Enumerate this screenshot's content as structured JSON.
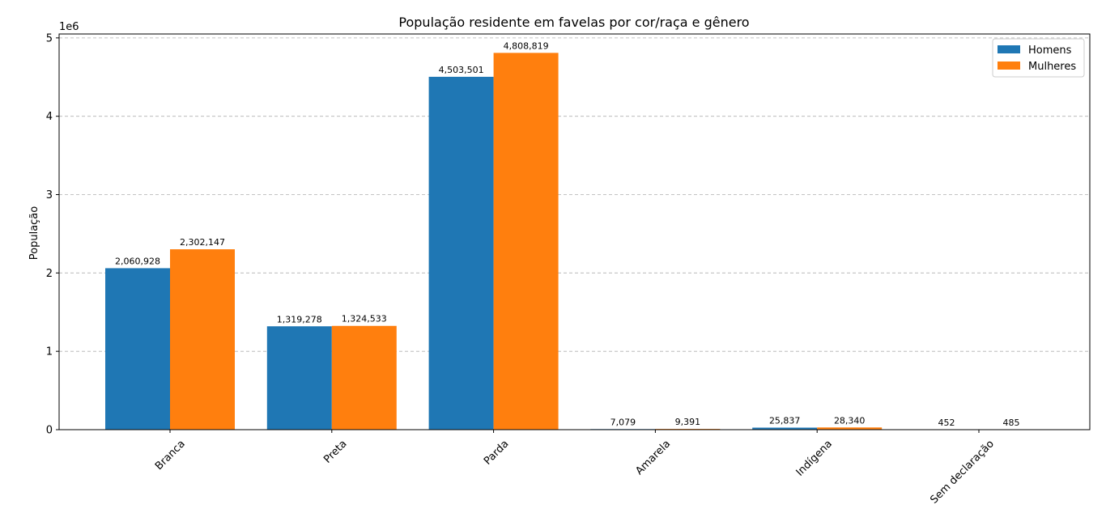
{
  "chart_data": {
    "type": "bar",
    "title": "População residente em favelas por cor/raça e gênero",
    "xlabel": "",
    "ylabel": "População",
    "y_scale_label": "1e6",
    "categories": [
      "Branca",
      "Preta",
      "Parda",
      "Amarela",
      "Indígena",
      "Sem declaração"
    ],
    "series": [
      {
        "name": "Homens",
        "color": "#1f77b4",
        "values": [
          2060928,
          1319278,
          4503501,
          7079,
          25837,
          452
        ],
        "labels": [
          "2,060,928",
          "1,319,278",
          "4,503,501",
          "7,079",
          "25,837",
          "452"
        ]
      },
      {
        "name": "Mulheres",
        "color": "#ff7f0e",
        "values": [
          2302147,
          1324533,
          4808819,
          9391,
          28340,
          485
        ],
        "labels": [
          "2,302,147",
          "1,324,533",
          "4,808,819",
          "9,391",
          "28,340",
          "485"
        ]
      }
    ],
    "ylim": [
      0,
      5050000
    ],
    "yticks": [
      0,
      1000000,
      2000000,
      3000000,
      4000000,
      5000000
    ],
    "ytick_labels": [
      "0",
      "1",
      "2",
      "3",
      "4",
      "5"
    ],
    "grid": "y-dashed",
    "legend_position": "top-right"
  }
}
